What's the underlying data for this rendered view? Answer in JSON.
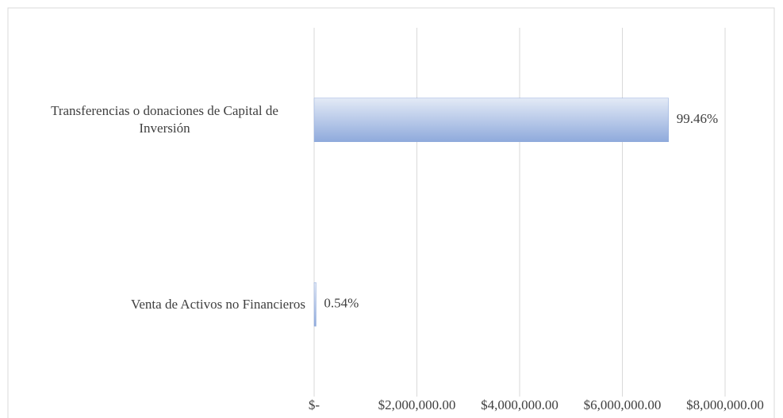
{
  "chart_data": {
    "type": "bar",
    "orientation": "horizontal",
    "categories": [
      "Transferencias o donaciones de Capital de Inversión",
      "Venta de Activos no Financieros"
    ],
    "values": [
      6900000,
      37500
    ],
    "value_labels": [
      "99.46%",
      "0.54%"
    ],
    "color": "#8faadc",
    "xlim": [
      0,
      8000000
    ],
    "xticks": [
      {
        "value": 0,
        "label": "$-"
      },
      {
        "value": 2000000,
        "label": "$2,000,000.00"
      },
      {
        "value": 4000000,
        "label": "$4,000,000.00"
      },
      {
        "value": 6000000,
        "label": "$6,000,000.00"
      },
      {
        "value": 8000000,
        "label": "$8,000,000.00"
      }
    ],
    "grid": true
  }
}
